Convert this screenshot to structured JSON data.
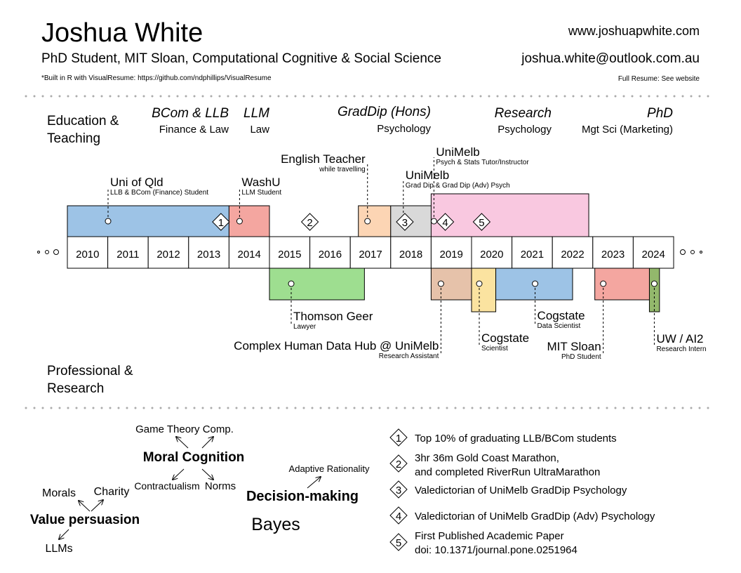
{
  "header": {
    "name": "Joshua White",
    "subtitle": "PhD Student, MIT Sloan, Computational Cognitive & Social Science",
    "website": "www.joshuapwhite.com",
    "email": "joshua.white@outlook.com.au",
    "built_note": "*Built in R with VisualResume: https://github.com/ndphillips/VisualResume",
    "full_resume_note": "Full Resume: See website"
  },
  "section_labels": {
    "education": [
      "Education &",
      "Teaching"
    ],
    "professional": [
      "Professional &",
      "Research"
    ]
  },
  "degrees": [
    {
      "title": "BCom & LLB",
      "field": "Finance & Law"
    },
    {
      "title": "LLM",
      "field": "Law"
    },
    {
      "title": "GradDip (Hons)",
      "field": "Psychology"
    },
    {
      "title": "Research",
      "field": "Psychology"
    },
    {
      "title": "PhD",
      "field": "Mgt Sci (Marketing)"
    }
  ],
  "chart_data": {
    "type": "timeline",
    "years": [
      2010,
      2011,
      2012,
      2013,
      2014,
      2015,
      2016,
      2017,
      2018,
      2019,
      2020,
      2021,
      2022,
      2023,
      2024
    ],
    "education": [
      {
        "title": "Uni of Qld",
        "sub": "LLB & BCom (Finance) Student",
        "start": 2010.0,
        "end": 2014.0,
        "color": "#9dc3e6"
      },
      {
        "title": "WashU",
        "sub": "LLM Student",
        "start": 2014.0,
        "end": 2015.0,
        "color": "#f4a6a0"
      },
      {
        "title": "English Teacher",
        "sub": "while travelling",
        "start": 2017.2,
        "end": 2018.0,
        "color": "#fcd5b4"
      },
      {
        "title": "UniMelb",
        "sub": "Grad Dip & Grad Dip (Adv) Psych",
        "start": 2018.0,
        "end": 2019.5,
        "color": "#d9d9d9"
      },
      {
        "title": "UniMelb",
        "sub": "Psych & Stats Tutor/Instructor",
        "start": 2019.0,
        "end": 2022.9,
        "color": "#f9c8e0"
      }
    ],
    "professional": [
      {
        "title": "Thomson Geer",
        "sub": "Lawyer",
        "start": 2015.0,
        "end": 2017.35,
        "color": "#9ede90"
      },
      {
        "title": "Complex Human Data Hub @ UniMelb",
        "sub": "Research Assistant",
        "start": 2019.0,
        "end": 2020.0,
        "color": "#e6c2aa"
      },
      {
        "title": "Cogstate",
        "sub": "Scientist",
        "start": 2020.0,
        "end": 2020.6,
        "color": "#fbe3a0"
      },
      {
        "title": "Cogstate",
        "sub": "Data Scientist",
        "start": 2020.6,
        "end": 2022.5,
        "color": "#9dc3e6"
      },
      {
        "title": "MIT Sloan",
        "sub": "PhD Student",
        "start": 2023.05,
        "end": 2024.5,
        "color": "#f4a6a0"
      },
      {
        "title": "UW / AI2",
        "sub": "Research Intern",
        "start": 2024.4,
        "end": 2024.65,
        "color": "#93b86c"
      }
    ],
    "milestones": [
      {
        "number": "1",
        "year": 2013.8
      },
      {
        "number": "2",
        "year": 2016.0
      },
      {
        "number": "3",
        "year": 2018.35
      },
      {
        "number": "4",
        "year": 2019.35
      },
      {
        "number": "5",
        "year": 2020.25
      }
    ]
  },
  "skills": [
    {
      "text": "Game Theory Comp."
    },
    {
      "text": "Moral Cognition"
    },
    {
      "text": "Contractualism"
    },
    {
      "text": "Norms"
    },
    {
      "text": "Adaptive Rationality"
    },
    {
      "text": "Decision-making"
    },
    {
      "text": "Bayes"
    },
    {
      "text": "Morals"
    },
    {
      "text": "Charity"
    },
    {
      "text": "Value persuasion"
    },
    {
      "text": "LLMs"
    }
  ],
  "achievements": [
    {
      "number": "1",
      "lines": [
        "Top 10% of graduating LLB/BCom students"
      ]
    },
    {
      "number": "2",
      "lines": [
        "3hr 36m Gold Coast Marathon,",
        "and completed RiverRun UltraMarathon"
      ]
    },
    {
      "number": "3",
      "lines": [
        "Valedictorian of UniMelb GradDip Psychology"
      ]
    },
    {
      "number": "4",
      "lines": [
        "Valedictorian of UniMelb GradDip (Adv) Psychology"
      ]
    },
    {
      "number": "5",
      "lines": [
        "First Published Academic Paper",
        "doi: 10.1371/journal.pone.0251964"
      ]
    }
  ]
}
